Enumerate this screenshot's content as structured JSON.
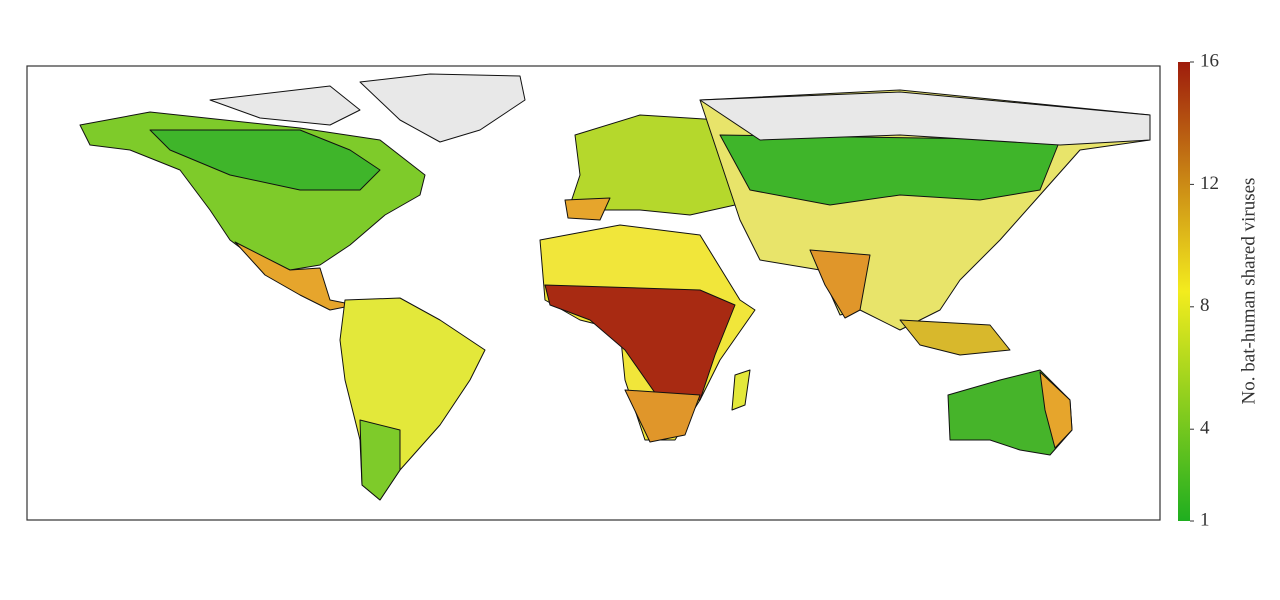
{
  "colorbar": {
    "label": "No. bat-human shared viruses",
    "range": [
      1,
      16
    ],
    "ticks": [
      1,
      4,
      8,
      12,
      16
    ],
    "colors": [
      "#1fae1f",
      "#f3ec1e",
      "#9e1c0c"
    ]
  }
}
